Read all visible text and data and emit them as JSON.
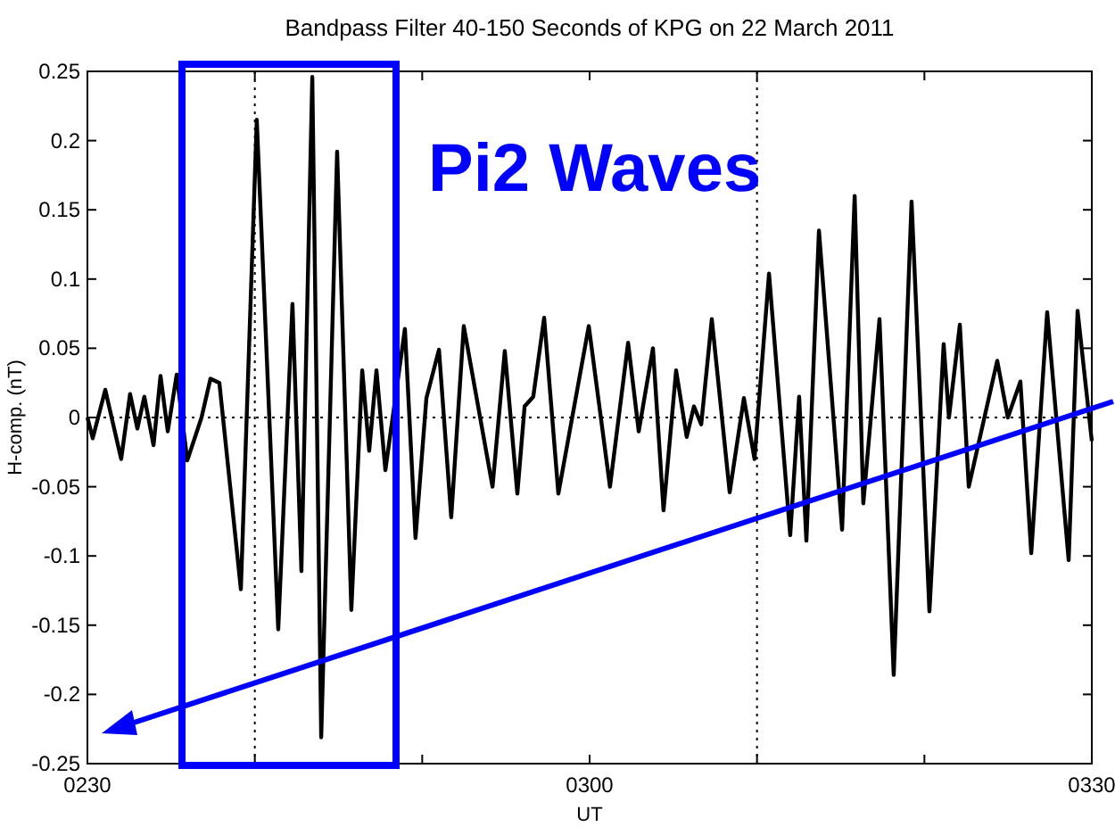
{
  "chart_data": {
    "type": "line",
    "title": "Bandpass Filter 40-150 Seconds of KPG on 22 March 2011",
    "xlabel": "UT",
    "ylabel": "H-comp. (nT)",
    "annotations": [
      "Pi2 Waves"
    ],
    "x": [
      "2011-03-22T02:30:00",
      "2011-03-22T02:30:19",
      "2011-03-22T02:31:04",
      "2011-03-22T02:32:01",
      "2011-03-22T02:32:33",
      "2011-03-22T02:32:59",
      "2011-03-22T02:33:24",
      "2011-03-22T02:33:57",
      "2011-03-22T02:34:22",
      "2011-03-22T02:34:48",
      "2011-03-22T02:35:20",
      "2011-03-22T02:35:58",
      "2011-03-22T02:36:49",
      "2011-03-22T02:37:21",
      "2011-03-22T02:37:53",
      "2011-03-22T02:39:10",
      "2011-03-22T02:40:07",
      "2011-03-22T02:41:24",
      "2011-03-22T02:42:15",
      "2011-03-22T02:42:47",
      "2011-03-22T02:43:26",
      "2011-03-22T02:43:58",
      "2011-03-22T02:44:55",
      "2011-03-22T02:45:46",
      "2011-03-22T02:46:25",
      "2011-03-22T02:46:50",
      "2011-03-22T02:47:16",
      "2011-03-22T02:47:48",
      "2011-03-22T02:48:58",
      "2011-03-22T02:49:36",
      "2011-03-22T02:50:15",
      "2011-03-22T02:51:00",
      "2011-03-22T02:51:44",
      "2011-03-22T02:52:29",
      "2011-03-22T02:54:12",
      "2011-03-22T02:54:56",
      "2011-03-22T02:55:41",
      "2011-03-22T02:56:07",
      "2011-03-22T02:56:38",
      "2011-03-22T02:57:17",
      "2011-03-22T02:58:08",
      "2011-03-22T02:59:57",
      "2011-03-22T03:01:13",
      "2011-03-22T03:02:18",
      "2011-03-22T03:02:56",
      "2011-03-22T03:03:47",
      "2011-03-22T03:04:25",
      "2011-03-22T03:05:10",
      "2011-03-22T03:05:48",
      "2011-03-22T03:06:14",
      "2011-03-22T03:06:40",
      "2011-03-22T03:07:18",
      "2011-03-22T03:08:22",
      "2011-03-22T03:09:13",
      "2011-03-22T03:09:51",
      "2011-03-22T03:10:43",
      "2011-03-22T03:11:59",
      "2011-03-22T03:12:31",
      "2011-03-22T03:12:57",
      "2011-03-22T03:13:42",
      "2011-03-22T03:15:05",
      "2011-03-22T03:15:50",
      "2011-03-22T03:16:21",
      "2011-03-22T03:17:19",
      "2011-03-22T03:18:10",
      "2011-03-22T03:19:14",
      "2011-03-22T03:20:18",
      "2011-03-22T03:21:09",
      "2011-03-22T03:21:28",
      "2011-03-22T03:22:07",
      "2011-03-22T03:22:39",
      "2011-03-22T03:24:21",
      "2011-03-22T03:24:59",
      "2011-03-22T03:25:44",
      "2011-03-22T03:26:23",
      "2011-03-22T03:27:20",
      "2011-03-22T03:28:37",
      "2011-03-22T03:29:09",
      "2011-03-22T03:30:00"
    ],
    "series": [
      {
        "color": "#000000",
        "values": [
          0,
          -0.015,
          0.02,
          -0.03,
          0.017,
          -0.008,
          0.015,
          -0.02,
          0.03,
          -0.01,
          0.031,
          -0.031,
          0,
          0.028,
          0.025,
          -0.124,
          0.215,
          -0.153,
          0.082,
          -0.111,
          0.246,
          -0.231,
          0.192,
          -0.139,
          0.034,
          -0.024,
          0.034,
          -0.038,
          0.064,
          -0.087,
          0.014,
          0.049,
          -0.072,
          0.066,
          -0.05,
          0.048,
          -0.055,
          0.008,
          0.015,
          0.072,
          -0.055,
          0.066,
          -0.05,
          0.054,
          -0.01,
          0.05,
          -0.067,
          0.034,
          -0.014,
          0.008,
          -0.005,
          0.071,
          -0.054,
          0.014,
          -0.03,
          0.104,
          -0.085,
          0.015,
          -0.089,
          0.135,
          -0.081,
          0.16,
          -0.062,
          0.071,
          -0.186,
          0.156,
          -0.14,
          0.053,
          0,
          0.067,
          -0.05,
          0.041,
          0,
          0.026,
          -0.098,
          0.076,
          -0.103,
          0.077,
          -0.017
        ]
      }
    ],
    "xlim": [
      "2011-03-22T02:30",
      "2011-03-22T03:30"
    ],
    "xticks": [
      {
        "value": "2011-03-22T02:30",
        "label": "0230"
      },
      {
        "value": "2011-03-22T02:40",
        "label": null
      },
      {
        "value": "2011-03-22T02:50",
        "label": null
      },
      {
        "value": "2011-03-22T03:00",
        "label": "0300"
      },
      {
        "value": "2011-03-22T03:10",
        "label": null
      },
      {
        "value": "2011-03-22T03:20",
        "label": null
      },
      {
        "value": "2011-03-22T03:30",
        "label": "0330"
      }
    ],
    "ylim": [
      -0.25,
      0.25
    ],
    "yticks": [
      -0.25,
      -0.2,
      -0.15,
      -0.1,
      -0.05,
      0,
      0.05,
      0.1,
      0.15,
      0.2,
      0.25
    ],
    "ref_lines": [
      {
        "axis": "x",
        "value": "2011-03-22T02:40",
        "line_style": "dotted"
      },
      {
        "axis": "x",
        "value": "2011-03-22T03:10",
        "line_style": "dotted"
      },
      {
        "axis": "y",
        "value": 0,
        "line_style": "dotted"
      }
    ],
    "line_style": "solid",
    "marker": "none",
    "grid": false
  }
}
